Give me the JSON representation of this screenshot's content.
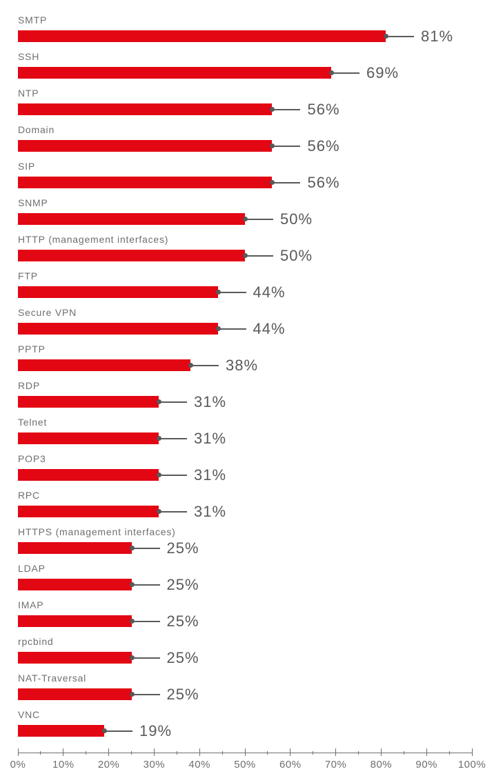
{
  "chart_data": {
    "type": "bar",
    "orientation": "horizontal",
    "title": "",
    "xlabel": "",
    "ylabel": "",
    "categories": [
      "SMTP",
      "SSH",
      "NTP",
      "Domain",
      "SIP",
      "SNMP",
      "HTTP (management interfaces)",
      "FTP",
      "Secure VPN",
      "PPTP",
      "RDP",
      "Telnet",
      "POP3",
      "RPC",
      "HTTPS (management interfaces)",
      "LDAP",
      "IMAP",
      "rpcbind",
      "NAT-Traversal",
      "VNC"
    ],
    "values": [
      81,
      69,
      56,
      56,
      56,
      50,
      50,
      44,
      44,
      38,
      31,
      31,
      31,
      31,
      25,
      25,
      25,
      25,
      25,
      19
    ],
    "value_unit": "%",
    "value_labels": [
      "81%",
      "69%",
      "56%",
      "56%",
      "56%",
      "50%",
      "50%",
      "44%",
      "44%",
      "38%",
      "31%",
      "31%",
      "31%",
      "31%",
      "25%",
      "25%",
      "25%",
      "25%",
      "25%",
      "19%"
    ],
    "xlim": [
      0,
      100
    ],
    "x_ticks": [
      0,
      10,
      20,
      30,
      40,
      50,
      60,
      70,
      80,
      90,
      100
    ],
    "x_tick_labels": [
      "0%",
      "10%",
      "20%",
      "30%",
      "40%",
      "50%",
      "60%",
      "70%",
      "80%",
      "90%",
      "100%"
    ],
    "minor_tick_step": 5,
    "grid": false,
    "legend": false,
    "colors": {
      "bar": "#e30613",
      "category_label": "#6d6e71",
      "value_label": "#58595b",
      "connector": "#58595b",
      "axis": "#6d6e71",
      "tick_label": "#6d6e71",
      "background": "#ffffff"
    }
  }
}
